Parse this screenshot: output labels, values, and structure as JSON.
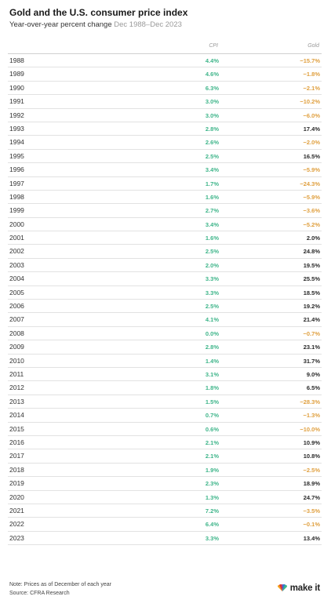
{
  "chart_data": {
    "type": "table",
    "title": "Gold and the U.S. consumer price index",
    "subtitle": "Year-over-year percent change",
    "date_range": "Dec 1988–Dec 2023",
    "columns": [
      "CPI",
      "Gold"
    ],
    "rows": [
      {
        "year": "1988",
        "cpi": "4.4%",
        "gold": "−15.7%",
        "cpi_value": 4.4,
        "gold_value": -15.7
      },
      {
        "year": "1989",
        "cpi": "4.6%",
        "gold": "−1.8%",
        "cpi_value": 4.6,
        "gold_value": -1.8
      },
      {
        "year": "1990",
        "cpi": "6.3%",
        "gold": "−2.1%",
        "cpi_value": 6.3,
        "gold_value": -2.1
      },
      {
        "year": "1991",
        "cpi": "3.0%",
        "gold": "−10.2%",
        "cpi_value": 3.0,
        "gold_value": -10.2
      },
      {
        "year": "1992",
        "cpi": "3.0%",
        "gold": "−6.0%",
        "cpi_value": 3.0,
        "gold_value": -6.0
      },
      {
        "year": "1993",
        "cpi": "2.8%",
        "gold": "17.4%",
        "cpi_value": 2.8,
        "gold_value": 17.4
      },
      {
        "year": "1994",
        "cpi": "2.6%",
        "gold": "−2.0%",
        "cpi_value": 2.6,
        "gold_value": -2.0
      },
      {
        "year": "1995",
        "cpi": "2.5%",
        "gold": "16.5%",
        "cpi_value": 2.5,
        "gold_value": 16.5
      },
      {
        "year": "1996",
        "cpi": "3.4%",
        "gold": "−5.9%",
        "cpi_value": 3.4,
        "gold_value": -5.9
      },
      {
        "year": "1997",
        "cpi": "1.7%",
        "gold": "−24.3%",
        "cpi_value": 1.7,
        "gold_value": -24.3
      },
      {
        "year": "1998",
        "cpi": "1.6%",
        "gold": "−5.9%",
        "cpi_value": 1.6,
        "gold_value": -5.9
      },
      {
        "year": "1999",
        "cpi": "2.7%",
        "gold": "−3.6%",
        "cpi_value": 2.7,
        "gold_value": -3.6
      },
      {
        "year": "2000",
        "cpi": "3.4%",
        "gold": "−5.2%",
        "cpi_value": 3.4,
        "gold_value": -5.2
      },
      {
        "year": "2001",
        "cpi": "1.6%",
        "gold": "2.0%",
        "cpi_value": 1.6,
        "gold_value": 2.0
      },
      {
        "year": "2002",
        "cpi": "2.5%",
        "gold": "24.8%",
        "cpi_value": 2.5,
        "gold_value": 24.8
      },
      {
        "year": "2003",
        "cpi": "2.0%",
        "gold": "19.5%",
        "cpi_value": 2.0,
        "gold_value": 19.5
      },
      {
        "year": "2004",
        "cpi": "3.3%",
        "gold": "25.5%",
        "cpi_value": 3.3,
        "gold_value": 25.5
      },
      {
        "year": "2005",
        "cpi": "3.3%",
        "gold": "18.5%",
        "cpi_value": 3.3,
        "gold_value": 18.5
      },
      {
        "year": "2006",
        "cpi": "2.5%",
        "gold": "19.2%",
        "cpi_value": 2.5,
        "gold_value": 19.2
      },
      {
        "year": "2007",
        "cpi": "4.1%",
        "gold": "21.4%",
        "cpi_value": 4.1,
        "gold_value": 21.4
      },
      {
        "year": "2008",
        "cpi": "0.0%",
        "gold": "−0.7%",
        "cpi_value": 0.0,
        "gold_value": -0.7
      },
      {
        "year": "2009",
        "cpi": "2.8%",
        "gold": "23.1%",
        "cpi_value": 2.8,
        "gold_value": 23.1
      },
      {
        "year": "2010",
        "cpi": "1.4%",
        "gold": "31.7%",
        "cpi_value": 1.4,
        "gold_value": 31.7
      },
      {
        "year": "2011",
        "cpi": "3.1%",
        "gold": "9.0%",
        "cpi_value": 3.1,
        "gold_value": 9.0
      },
      {
        "year": "2012",
        "cpi": "1.8%",
        "gold": "6.5%",
        "cpi_value": 1.8,
        "gold_value": 6.5
      },
      {
        "year": "2013",
        "cpi": "1.5%",
        "gold": "−28.3%",
        "cpi_value": 1.5,
        "gold_value": -28.3
      },
      {
        "year": "2014",
        "cpi": "0.7%",
        "gold": "−1.3%",
        "cpi_value": 0.7,
        "gold_value": -1.3
      },
      {
        "year": "2015",
        "cpi": "0.6%",
        "gold": "−10.0%",
        "cpi_value": 0.6,
        "gold_value": -10.0
      },
      {
        "year": "2016",
        "cpi": "2.1%",
        "gold": "10.9%",
        "cpi_value": 2.1,
        "gold_value": 10.9
      },
      {
        "year": "2017",
        "cpi": "2.1%",
        "gold": "10.8%",
        "cpi_value": 2.1,
        "gold_value": 10.8
      },
      {
        "year": "2018",
        "cpi": "1.9%",
        "gold": "−2.5%",
        "cpi_value": 1.9,
        "gold_value": -2.5
      },
      {
        "year": "2019",
        "cpi": "2.3%",
        "gold": "18.9%",
        "cpi_value": 2.3,
        "gold_value": 18.9
      },
      {
        "year": "2020",
        "cpi": "1.3%",
        "gold": "24.7%",
        "cpi_value": 1.3,
        "gold_value": 24.7
      },
      {
        "year": "2021",
        "cpi": "7.2%",
        "gold": "−3.5%",
        "cpi_value": 7.2,
        "gold_value": -3.5
      },
      {
        "year": "2022",
        "cpi": "6.4%",
        "gold": "−0.1%",
        "cpi_value": 6.4,
        "gold_value": -0.1
      },
      {
        "year": "2023",
        "cpi": "3.3%",
        "gold": "13.4%",
        "cpi_value": 3.3,
        "gold_value": 13.4
      }
    ],
    "colors": {
      "cpi": "#3fb58a",
      "gold_negative": "#e0a040",
      "gold_positive": "#2a2a2a"
    }
  },
  "footer": {
    "note": "Note: Prices as of December of each year",
    "source": "Source: CFRA Research"
  },
  "brand": {
    "name": "make it",
    "icon": "peacock-logo-icon"
  }
}
